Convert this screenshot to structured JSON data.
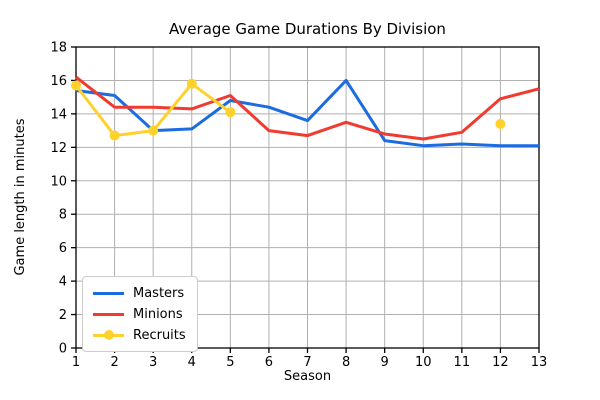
{
  "chart_data": {
    "type": "line",
    "title": "Average Game Durations By Division",
    "xlabel": "Season",
    "ylabel": "Game length in minutes",
    "x": [
      1,
      2,
      3,
      4,
      5,
      6,
      7,
      8,
      9,
      10,
      11,
      12,
      13
    ],
    "xlim": [
      1,
      13
    ],
    "ylim": [
      0,
      18
    ],
    "xticks": [
      1,
      2,
      3,
      4,
      5,
      6,
      7,
      8,
      9,
      10,
      11,
      12,
      13
    ],
    "yticks": [
      0,
      2,
      4,
      6,
      8,
      10,
      12,
      14,
      16,
      18
    ],
    "grid": true,
    "legend_position": "lower-left",
    "series": [
      {
        "name": "Masters",
        "color": "#1b6ce1",
        "marker": "none",
        "values": [
          15.4,
          15.1,
          13.0,
          13.1,
          14.8,
          14.4,
          13.6,
          16.0,
          12.4,
          12.1,
          12.2,
          12.1,
          12.1
        ]
      },
      {
        "name": "Minions",
        "color": "#f13a30",
        "marker": "none",
        "values": [
          16.2,
          14.4,
          14.4,
          14.3,
          15.1,
          13.0,
          12.7,
          13.5,
          12.8,
          12.5,
          12.9,
          14.9,
          15.5
        ]
      },
      {
        "name": "Recruits",
        "color": "#ffd12b",
        "marker": "circle",
        "values": [
          15.7,
          12.7,
          13.0,
          15.8,
          14.1,
          null,
          null,
          null,
          null,
          null,
          null,
          13.4,
          null
        ]
      }
    ],
    "colors": {
      "grid": "#b0b0b0",
      "axis": "#000000",
      "background": "#ffffff"
    }
  }
}
